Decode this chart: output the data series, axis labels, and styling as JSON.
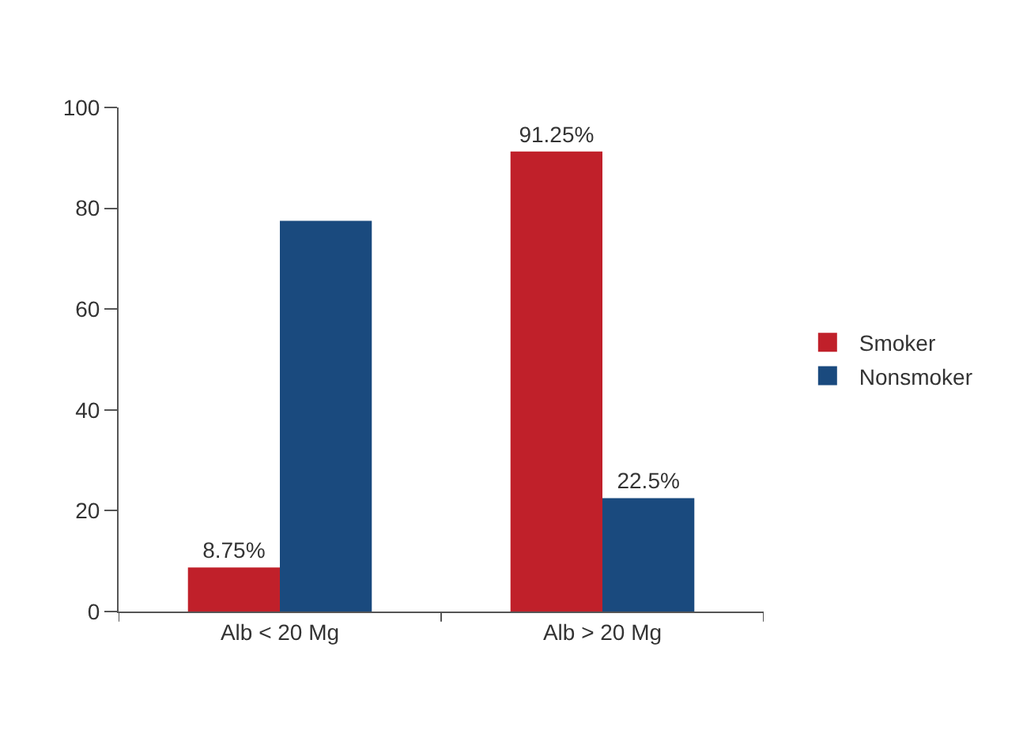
{
  "chart_data": {
    "type": "bar",
    "categories": [
      "Alb < 20 Mg",
      "Alb > 20 Mg"
    ],
    "series": [
      {
        "name": "Smoker",
        "color": "#c0202a",
        "values": [
          8.75,
          91.25
        ],
        "value_labels": [
          "8.75%",
          "91.25%"
        ]
      },
      {
        "name": "Nonsmoker",
        "color": "#1a4a7e",
        "values": [
          77.5,
          22.5
        ],
        "value_labels": [
          null,
          "22.5%"
        ]
      }
    ],
    "ylim": [
      0,
      100
    ],
    "yticks": [
      0,
      20,
      40,
      60,
      80,
      100
    ],
    "legend": "right"
  }
}
